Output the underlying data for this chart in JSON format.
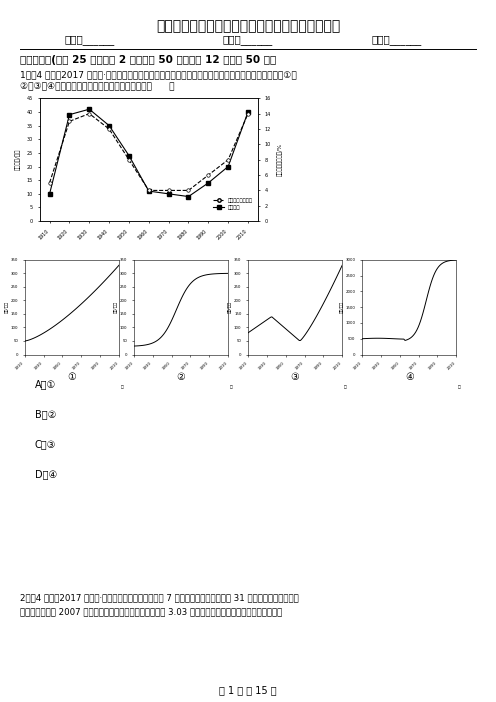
{
  "title": "江西省上饶市高一下学期地理期末考试试卷（文）",
  "name_label": "姓名：______",
  "class_label": "班级：______",
  "score_label": "成绩：______",
  "section1": "一、单选题(本题 25 小题，每 2 分，共计 50 分）（共 12 题；共 50 分）",
  "q1_text": "1．（4 分）（2017 高一下·东台期中）下图为显示某国移民人数及其占总人口比例的变化。下图所示的①、",
  "q1_text2": "②、③、④四幅图中，符合该国人口增长特征的是（      ）",
  "main_chart_ylabel_left": "移民人数/百万",
  "main_chart_ylabel_right": "移民占总人口比例/%",
  "main_chart_years": [
    1910,
    1920,
    1930,
    1940,
    1950,
    1960,
    1970,
    1980,
    1990,
    2000,
    2010
  ],
  "immigrants_count": [
    10,
    39,
    41,
    35,
    24,
    11,
    10,
    9,
    14,
    20,
    40
  ],
  "immigrants_pct": [
    5,
    13,
    14,
    12,
    8,
    4,
    4,
    4,
    6,
    8,
    14
  ],
  "legend_pct": "移民占总人口比例",
  "legend_count": "移民人数",
  "sub_chart_ylabel": "人数/百万",
  "answer_options": [
    "A．①",
    "B．②",
    "C．③",
    "D．④"
  ],
  "q2_text": "2．（4 分）（2017 高一下·南沙月考）根据统计美国每 7 秒钟超接一个新生儿，每 31 秒钟进入一名新移民，",
  "q2_text2": "美国人口普查局 2007 年年底发布报告称，美国人口总数为 3.03 亿左右。结合右，右两图回答下列各题。",
  "page_footer": "第 1 页 共 15 页",
  "background_color": "#ffffff"
}
